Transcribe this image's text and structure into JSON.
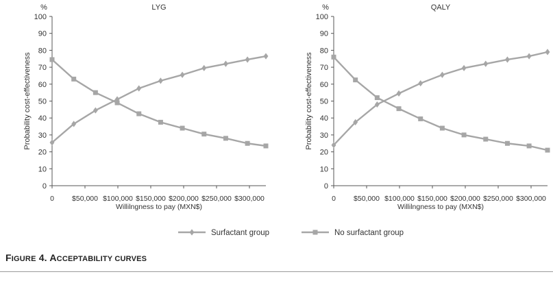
{
  "chart_data": [
    {
      "type": "line",
      "title": "LYG",
      "ylabel": "Probability cost-effectiveness",
      "yunit": "%",
      "xlabel": "Willilngness to pay (MXN$)",
      "ylim": [
        0,
        100
      ],
      "yticks": [
        "0",
        "10",
        "20",
        "30",
        "40",
        "50",
        "60",
        "70",
        "80",
        "90",
        "100"
      ],
      "xlim": [
        0,
        325000
      ],
      "xtick_values": [
        0,
        50000,
        100000,
        150000,
        200000,
        250000,
        300000
      ],
      "xtick_labels": [
        "0",
        "$50,000",
        "$100,000",
        "$150,000",
        "$200,000",
        "$250,000",
        "$300,000"
      ],
      "x": [
        0,
        33000,
        66000,
        99000,
        132000,
        165000,
        198000,
        231000,
        264000,
        297000,
        325000
      ],
      "series": [
        {
          "name": "Surfactant group",
          "marker": "diamond",
          "values": [
            25.5,
            36.5,
            44.5,
            51,
            57.5,
            62,
            65.5,
            69.5,
            72,
            74.5,
            76.5
          ]
        },
        {
          "name": "No surfactant group",
          "marker": "square",
          "values": [
            74.5,
            63,
            55,
            49,
            42.5,
            37.5,
            34,
            30.5,
            28,
            25,
            23.5
          ]
        }
      ],
      "grid": false
    },
    {
      "type": "line",
      "title": "QALY",
      "ylabel": "Probability cost-effectiveness",
      "yunit": "%",
      "xlabel": "Willilngness to pay (MXN$)",
      "ylim": [
        0,
        100
      ],
      "yticks": [
        "0",
        "10",
        "20",
        "30",
        "40",
        "50",
        "60",
        "70",
        "80",
        "90",
        "100"
      ],
      "xlim": [
        0,
        325000
      ],
      "xtick_values": [
        0,
        50000,
        100000,
        150000,
        200000,
        250000,
        300000
      ],
      "xtick_labels": [
        "0",
        "$50,000",
        "$100,000",
        "$150,000",
        "$200,000",
        "$250,000",
        "$300,000"
      ],
      "x": [
        0,
        33000,
        66000,
        99000,
        132000,
        165000,
        198000,
        231000,
        264000,
        297000,
        325000
      ],
      "series": [
        {
          "name": "Surfactant group",
          "marker": "diamond",
          "values": [
            24,
            37.5,
            48,
            54.5,
            60.5,
            65.5,
            69.5,
            72,
            74.5,
            76.5,
            79
          ]
        },
        {
          "name": "No surfactant group",
          "marker": "square",
          "values": [
            76,
            62.5,
            52,
            45.5,
            39.5,
            34,
            30,
            27.5,
            25,
            23.5,
            21
          ]
        }
      ],
      "grid": false
    }
  ],
  "legend": {
    "placement": "bottom-center",
    "items": [
      {
        "label": "Surfactant group",
        "marker": "diamond"
      },
      {
        "label": "No surfactant group",
        "marker": "square"
      }
    ]
  },
  "caption": {
    "first": "F",
    "first_rest": "IGURE",
    "num": " 4. ",
    "second": "A",
    "second_rest": "CCEPTABILITY CURVES"
  },
  "colors": {
    "line": "#a6a6a6",
    "axis": "#555555",
    "text": "#333333"
  }
}
